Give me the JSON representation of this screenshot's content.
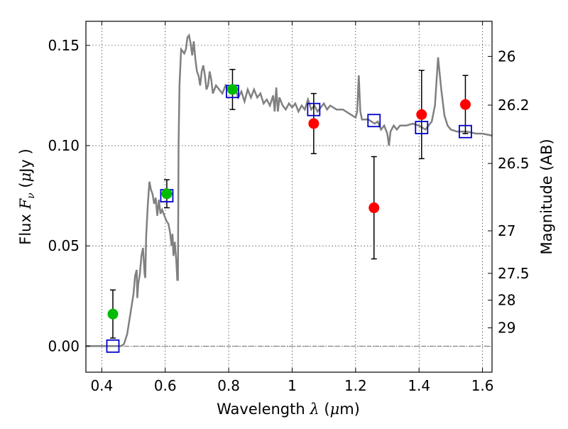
{
  "chart_data": {
    "type": "scatter",
    "xlabel": "Wavelength",
    "xlabel_symbol": "λ",
    "xlabel_unit_open": " (",
    "xlabel_unit_mu": "μ",
    "xlabel_unit_rest": "m)",
    "ylabel_text": "Flux",
    "ylabel_symbol": "F",
    "ylabel_subscript": "ν",
    "ylabel_unit_open": "  (",
    "ylabel_unit_mu": "μ",
    "ylabel_unit_rest": "Jy )",
    "y2label": "Magnitude (AB)",
    "xlim": [
      0.35,
      1.63
    ],
    "ylim": [
      -0.013,
      0.162
    ],
    "grid": true,
    "x_ticks": [
      0.4,
      0.6,
      0.8,
      1.0,
      1.2,
      1.4,
      1.6
    ],
    "x_tick_labels": [
      "0.4",
      "0.6",
      "0.8",
      "1",
      "1.2",
      "1.4",
      "1.6"
    ],
    "y_ticks": [
      0.0,
      0.05,
      0.1,
      0.15
    ],
    "y_tick_labels": [
      "0.00",
      "0.05",
      "0.10",
      "0.15"
    ],
    "y2_ticks": [
      {
        "label": "26",
        "flux": 0.1445
      },
      {
        "label": "26.2",
        "flux": 0.1202
      },
      {
        "label": "26.5",
        "flux": 0.0911
      },
      {
        "label": "27",
        "flux": 0.0575
      },
      {
        "label": "27.5",
        "flux": 0.0363
      },
      {
        "label": "28",
        "flux": 0.0229
      },
      {
        "label": "29",
        "flux": 0.0091
      }
    ],
    "zero_line": 0.0,
    "colors": {
      "model": "#808080",
      "green_points": "#00bb00",
      "red_points": "#ff0000",
      "model_squares": "#0000cc",
      "errorbar": "#000000"
    },
    "series": [
      {
        "kind": "model_spectrum",
        "points": [
          [
            0.35,
            0.0
          ],
          [
            0.44,
            0.0
          ],
          [
            0.46,
            0.0
          ],
          [
            0.47,
            0.001
          ],
          [
            0.48,
            0.006
          ],
          [
            0.49,
            0.016
          ],
          [
            0.5,
            0.026
          ],
          [
            0.505,
            0.035
          ],
          [
            0.51,
            0.038
          ],
          [
            0.512,
            0.024
          ],
          [
            0.515,
            0.031
          ],
          [
            0.52,
            0.036
          ],
          [
            0.525,
            0.045
          ],
          [
            0.53,
            0.049
          ],
          [
            0.535,
            0.036
          ],
          [
            0.537,
            0.034
          ],
          [
            0.54,
            0.055
          ],
          [
            0.545,
            0.07
          ],
          [
            0.55,
            0.082
          ],
          [
            0.555,
            0.078
          ],
          [
            0.56,
            0.076
          ],
          [
            0.565,
            0.071
          ],
          [
            0.57,
            0.074
          ],
          [
            0.575,
            0.065
          ],
          [
            0.58,
            0.073
          ],
          [
            0.585,
            0.066
          ],
          [
            0.59,
            0.068
          ],
          [
            0.6,
            0.064
          ],
          [
            0.605,
            0.062
          ],
          [
            0.61,
            0.061
          ],
          [
            0.615,
            0.057
          ],
          [
            0.62,
            0.05
          ],
          [
            0.623,
            0.056
          ],
          [
            0.626,
            0.045
          ],
          [
            0.63,
            0.052
          ],
          [
            0.635,
            0.042
          ],
          [
            0.638,
            0.033
          ],
          [
            0.64,
            0.033
          ],
          [
            0.642,
            0.1
          ],
          [
            0.645,
            0.13
          ],
          [
            0.65,
            0.148
          ],
          [
            0.66,
            0.146
          ],
          [
            0.665,
            0.148
          ],
          [
            0.67,
            0.154
          ],
          [
            0.675,
            0.155
          ],
          [
            0.68,
            0.151
          ],
          [
            0.685,
            0.145
          ],
          [
            0.69,
            0.152
          ],
          [
            0.695,
            0.143
          ],
          [
            0.7,
            0.137
          ],
          [
            0.705,
            0.135
          ],
          [
            0.71,
            0.13
          ],
          [
            0.715,
            0.137
          ],
          [
            0.72,
            0.14
          ],
          [
            0.725,
            0.135
          ],
          [
            0.73,
            0.128
          ],
          [
            0.735,
            0.13
          ],
          [
            0.74,
            0.137
          ],
          [
            0.745,
            0.133
          ],
          [
            0.75,
            0.126
          ],
          [
            0.76,
            0.13
          ],
          [
            0.77,
            0.128
          ],
          [
            0.78,
            0.126
          ],
          [
            0.79,
            0.13
          ],
          [
            0.8,
            0.128
          ],
          [
            0.81,
            0.126
          ],
          [
            0.82,
            0.129
          ],
          [
            0.83,
            0.124
          ],
          [
            0.84,
            0.127
          ],
          [
            0.85,
            0.122
          ],
          [
            0.86,
            0.128
          ],
          [
            0.87,
            0.124
          ],
          [
            0.88,
            0.128
          ],
          [
            0.89,
            0.124
          ],
          [
            0.9,
            0.126
          ],
          [
            0.91,
            0.121
          ],
          [
            0.92,
            0.123
          ],
          [
            0.93,
            0.12
          ],
          [
            0.94,
            0.125
          ],
          [
            0.945,
            0.117
          ],
          [
            0.95,
            0.129
          ],
          [
            0.955,
            0.117
          ],
          [
            0.96,
            0.124
          ],
          [
            0.97,
            0.12
          ],
          [
            0.98,
            0.118
          ],
          [
            0.99,
            0.121
          ],
          [
            1.0,
            0.119
          ],
          [
            1.01,
            0.121
          ],
          [
            1.02,
            0.117
          ],
          [
            1.03,
            0.12
          ],
          [
            1.04,
            0.118
          ],
          [
            1.05,
            0.123
          ],
          [
            1.06,
            0.118
          ],
          [
            1.07,
            0.12
          ],
          [
            1.08,
            0.117
          ],
          [
            1.09,
            0.119
          ],
          [
            1.1,
            0.121
          ],
          [
            1.11,
            0.118
          ],
          [
            1.12,
            0.12
          ],
          [
            1.14,
            0.118
          ],
          [
            1.16,
            0.118
          ],
          [
            1.18,
            0.116
          ],
          [
            1.2,
            0.114
          ],
          [
            1.205,
            0.117
          ],
          [
            1.21,
            0.135
          ],
          [
            1.215,
            0.117
          ],
          [
            1.22,
            0.113
          ],
          [
            1.24,
            0.113
          ],
          [
            1.26,
            0.111
          ],
          [
            1.27,
            0.112
          ],
          [
            1.28,
            0.108
          ],
          [
            1.29,
            0.11
          ],
          [
            1.3,
            0.106
          ],
          [
            1.305,
            0.1
          ],
          [
            1.31,
            0.107
          ],
          [
            1.32,
            0.11
          ],
          [
            1.33,
            0.108
          ],
          [
            1.34,
            0.11
          ],
          [
            1.36,
            0.11
          ],
          [
            1.38,
            0.111
          ],
          [
            1.4,
            0.11
          ],
          [
            1.42,
            0.108
          ],
          [
            1.44,
            0.112
          ],
          [
            1.45,
            0.12
          ],
          [
            1.46,
            0.144
          ],
          [
            1.47,
            0.128
          ],
          [
            1.48,
            0.115
          ],
          [
            1.49,
            0.11
          ],
          [
            1.5,
            0.108
          ],
          [
            1.52,
            0.107
          ],
          [
            1.55,
            0.107
          ],
          [
            1.58,
            0.106
          ],
          [
            1.6,
            0.106
          ],
          [
            1.63,
            0.105
          ]
        ]
      },
      {
        "kind": "green_points",
        "points": [
          {
            "x": 0.435,
            "y": 0.016,
            "err": 0.012
          },
          {
            "x": 0.605,
            "y": 0.076,
            "err": 0.007
          },
          {
            "x": 0.812,
            "y": 0.128,
            "err": 0.01
          }
        ]
      },
      {
        "kind": "red_points",
        "points": [
          {
            "x": 1.068,
            "y": 0.111,
            "err": 0.015
          },
          {
            "x": 1.258,
            "y": 0.069,
            "err": 0.0255
          },
          {
            "x": 1.408,
            "y": 0.1155,
            "err": 0.022
          },
          {
            "x": 1.546,
            "y": 0.1205,
            "err": 0.0145
          }
        ]
      },
      {
        "kind": "model_squares",
        "points": [
          {
            "x": 0.435,
            "y": 0.0
          },
          {
            "x": 0.605,
            "y": 0.075
          },
          {
            "x": 0.812,
            "y": 0.127
          },
          {
            "x": 1.068,
            "y": 0.118
          },
          {
            "x": 1.258,
            "y": 0.1125
          },
          {
            "x": 1.408,
            "y": 0.109
          },
          {
            "x": 1.546,
            "y": 0.107
          }
        ]
      }
    ]
  }
}
